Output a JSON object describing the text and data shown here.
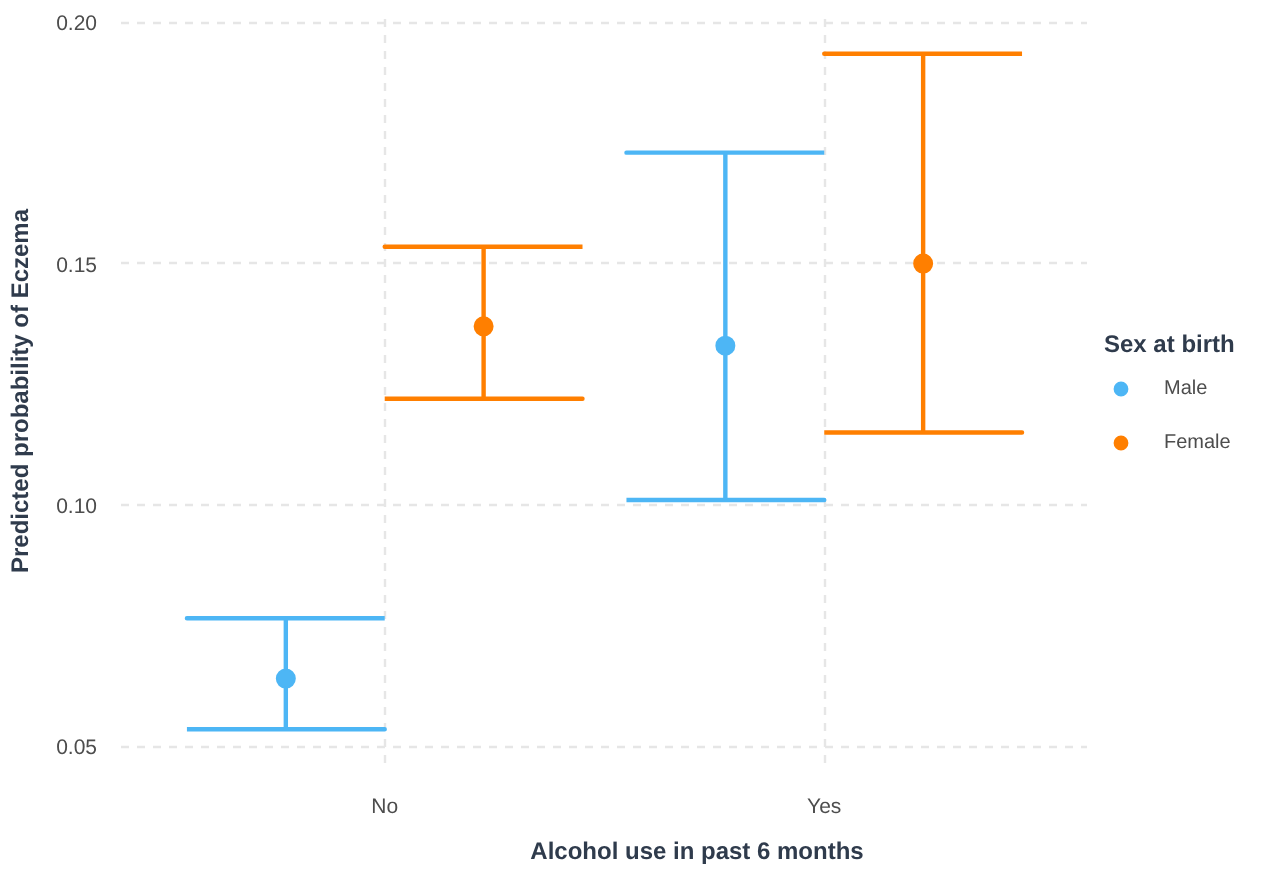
{
  "chart_data": {
    "type": "scatter",
    "xlabel": "Alcohol use in past 6 months",
    "ylabel": "Predicted probability of Eczema",
    "legend_title": "Sex at birth",
    "categories": [
      "No",
      "Yes"
    ],
    "series": [
      {
        "name": "Male",
        "color": "#4db6f5",
        "values": [
          0.064,
          0.133
        ],
        "errors": [
          [
            0.0535,
            0.0765
          ],
          [
            0.101,
            0.173
          ]
        ]
      },
      {
        "name": "Female",
        "color": "#ff7f00",
        "values": [
          0.137,
          0.15
        ],
        "errors": [
          [
            0.122,
            0.1535
          ],
          [
            0.115,
            0.1935
          ]
        ]
      }
    ],
    "ylim": [
      0.0465,
      0.2007
    ],
    "yticks": [
      0.05,
      {
        "value": 0.1,
        "label": "0.10"
      },
      0.15,
      {
        "value": 0.2,
        "label": "0.20"
      }
    ],
    "grid": true,
    "legend": "right",
    "marker": "circle"
  }
}
